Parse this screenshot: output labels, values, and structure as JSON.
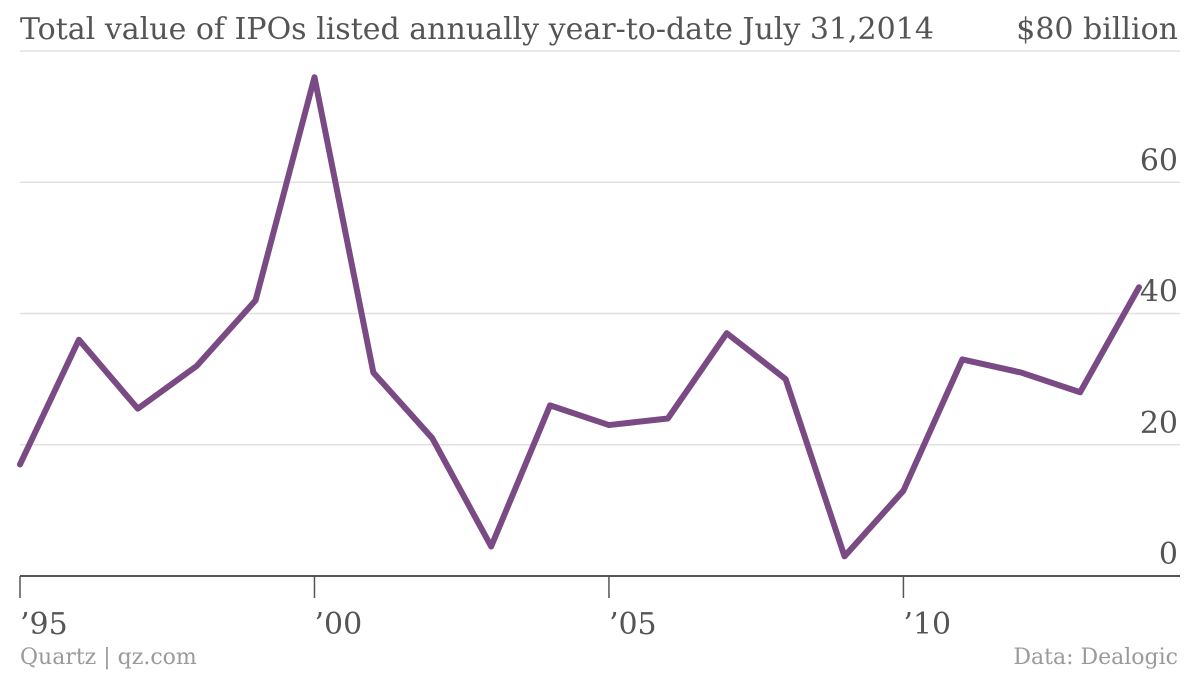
{
  "chart_data": {
    "type": "line",
    "title": "Total value of IPOs listed annually year-to-date July 31,2014",
    "y_unit_label": "$80 billion",
    "xlabel": "",
    "ylabel": "",
    "x": [
      1995,
      1996,
      1997,
      1998,
      1999,
      2000,
      2001,
      2002,
      2003,
      2004,
      2005,
      2006,
      2007,
      2008,
      2009,
      2010,
      2011,
      2012,
      2013,
      2014
    ],
    "series": [
      {
        "values": [
          17,
          36,
          25.5,
          32,
          42,
          76,
          31,
          21,
          4.5,
          26,
          23,
          24,
          37,
          30,
          3,
          13,
          33,
          31,
          28,
          44
        ]
      }
    ],
    "xlim": [
      1995,
      2014
    ],
    "ylim": [
      0,
      80
    ],
    "y_ticks": [
      0,
      20,
      40,
      60
    ],
    "y_tick_labels": [
      "0",
      "20",
      "40",
      "60"
    ],
    "x_ticks": [
      1995,
      2000,
      2005,
      2010
    ],
    "x_tick_labels": [
      "’95",
      "’00",
      "’05",
      "’10"
    ],
    "grid": true,
    "legend": "none",
    "line_color": "#7a4a84",
    "grid_color": "#e0e0e0",
    "axis_color": "#555555"
  },
  "footer": {
    "source_left": "Quartz | qz.com",
    "source_right": "Data: Dealogic"
  }
}
